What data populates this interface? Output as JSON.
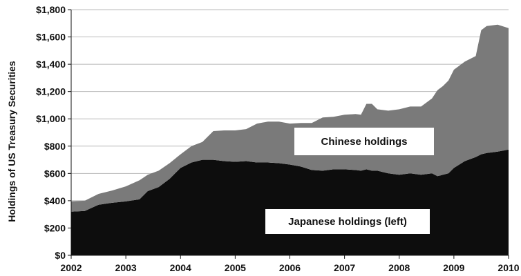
{
  "chart_data": {
    "type": "area",
    "stacked": true,
    "ylabel": "Holdings of US Treasury Securities",
    "xlim": [
      2002,
      2010
    ],
    "ylim": [
      0,
      1800
    ],
    "x_ticks": [
      "2002",
      "2003",
      "2004",
      "2005",
      "2006",
      "2007",
      "2008",
      "2009",
      "2010"
    ],
    "y_ticks": [
      "$0",
      "$200",
      "$400",
      "$600",
      "$800",
      "$1,000",
      "$1,200",
      "$1,400",
      "$1,600",
      "$1,800"
    ],
    "grid": true,
    "x": [
      2002.0,
      2002.25,
      2002.5,
      2002.75,
      2003.0,
      2003.25,
      2003.4,
      2003.6,
      2003.8,
      2004.0,
      2004.2,
      2004.4,
      2004.6,
      2004.8,
      2005.0,
      2005.2,
      2005.4,
      2005.6,
      2005.8,
      2006.0,
      2006.2,
      2006.4,
      2006.6,
      2006.8,
      2007.0,
      2007.2,
      2007.3,
      2007.4,
      2007.5,
      2007.6,
      2007.8,
      2008.0,
      2008.2,
      2008.4,
      2008.6,
      2008.7,
      2008.8,
      2008.9,
      2009.0,
      2009.2,
      2009.4,
      2009.5,
      2009.6,
      2009.8,
      2010.0
    ],
    "series": [
      {
        "name": "Japanese holdings (left)",
        "color": "#0d0d0d",
        "values": [
          320,
          325,
          370,
          385,
          395,
          410,
          470,
          500,
          560,
          640,
          680,
          700,
          700,
          690,
          685,
          690,
          680,
          680,
          675,
          665,
          650,
          625,
          620,
          630,
          630,
          625,
          620,
          630,
          620,
          620,
          600,
          590,
          600,
          590,
          600,
          580,
          590,
          600,
          640,
          690,
          720,
          740,
          750,
          760,
          775
        ]
      },
      {
        "name": "Chinese holdings",
        "color": "#7a7a7a",
        "values": [
          75,
          75,
          80,
          90,
          110,
          140,
          120,
          120,
          115,
          100,
          120,
          130,
          210,
          225,
          230,
          235,
          285,
          300,
          305,
          300,
          320,
          345,
          390,
          385,
          400,
          410,
          410,
          480,
          490,
          450,
          460,
          480,
          490,
          500,
          550,
          630,
          650,
          680,
          720,
          730,
          740,
          910,
          930,
          930,
          890
        ]
      }
    ],
    "annotations": [
      "Chinese holdings",
      "Japanese holdings (left)"
    ]
  },
  "colors": {
    "japanese": "#0d0d0d",
    "chinese": "#7a7a7a",
    "grid": "#b8b8b8",
    "label_box": "#ffffff"
  }
}
